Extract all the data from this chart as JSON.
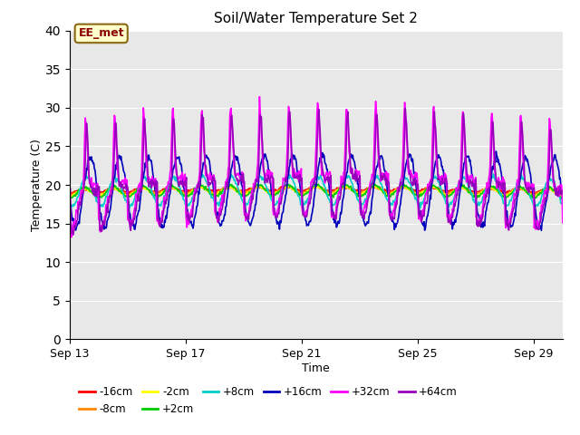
{
  "title": "Soil/Water Temperature Set 2",
  "xlabel": "Time",
  "ylabel": "Temperature (C)",
  "ylim": [
    0,
    40
  ],
  "yticks": [
    0,
    5,
    10,
    15,
    20,
    25,
    30,
    35,
    40
  ],
  "x_tick_labels": [
    "Sep 13",
    "Sep 17",
    "Sep 21",
    "Sep 25",
    "Sep 29"
  ],
  "x_tick_positions": [
    0,
    4,
    8,
    12,
    16
  ],
  "annotation_text": "EE_met",
  "fig_bg": "#ffffff",
  "plot_bg": "#e8e8e8",
  "series": [
    {
      "label": "-16cm",
      "color": "#ff0000",
      "amplitude": 0.25,
      "base": 19.2,
      "phase": 0.0,
      "noise": 0.08
    },
    {
      "label": "-8cm",
      "color": "#ff8800",
      "amplitude": 0.35,
      "base": 19.1,
      "phase": 0.0,
      "noise": 0.08
    },
    {
      "label": "-2cm",
      "color": "#ffff00",
      "amplitude": 0.5,
      "base": 19.0,
      "phase": 0.0,
      "noise": 0.08
    },
    {
      "label": "+2cm",
      "color": "#00cc00",
      "amplitude": 0.7,
      "base": 19.0,
      "phase": 0.02,
      "noise": 0.1
    },
    {
      "label": "+8cm",
      "color": "#00cccc",
      "amplitude": 1.8,
      "base": 19.0,
      "phase": 0.08,
      "noise": 0.15
    },
    {
      "label": "+16cm",
      "color": "#0000bb",
      "amplitude": 4.5,
      "base": 19.0,
      "phase": 0.22,
      "noise": 0.25
    },
    {
      "label": "+32cm",
      "color": "#ff00ff",
      "amplitude": 9.0,
      "base": 19.5,
      "phase": 0.0,
      "noise": 0.4,
      "sharp": true
    },
    {
      "label": "+64cm",
      "color": "#9900bb",
      "amplitude": 8.5,
      "base": 19.0,
      "phase": 0.03,
      "noise": 0.35,
      "sharp": true
    }
  ],
  "linewidth": 1.2
}
